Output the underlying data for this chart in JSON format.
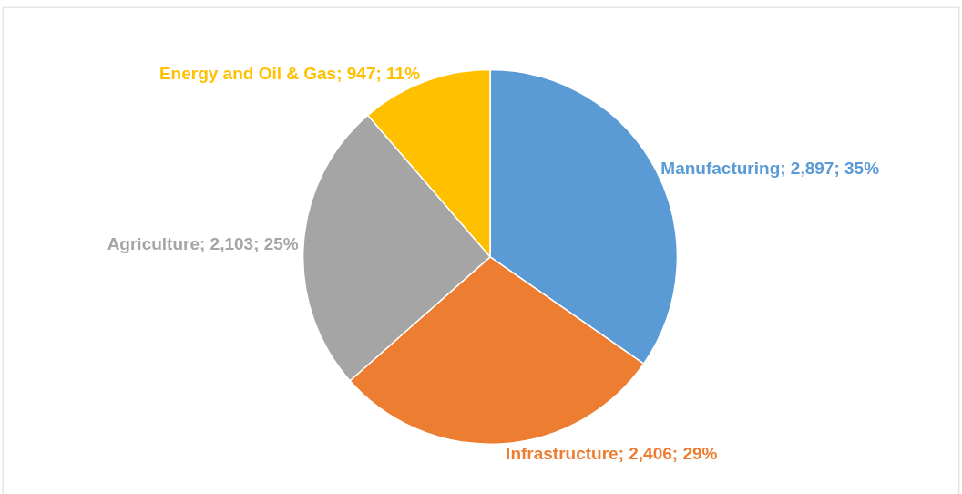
{
  "chart_data": {
    "type": "pie",
    "categories": [
      "Manufacturing",
      "Infrastructure",
      "Agriculture",
      "Energy and Oil & Gas"
    ],
    "values": [
      2897,
      2406,
      2103,
      947
    ],
    "colors": [
      "#5b9bd5",
      "#ed7d31",
      "#a5a5a5",
      "#ffc000"
    ],
    "value_labels": [
      "2,897; 35%",
      "2,406; 29%",
      "2,103; 25%",
      "947; 11%"
    ],
    "legend": false
  }
}
